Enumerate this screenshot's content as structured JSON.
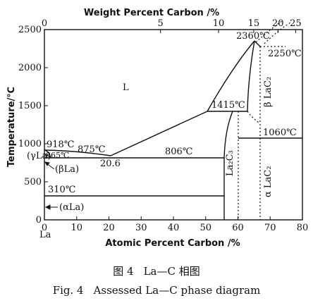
{
  "chart_data": {
    "type": "phase-diagram",
    "title_top_axis": "Weight Percent Carbon /%",
    "xlabel": "Atomic Percent Carbon /%",
    "ylabel": "Temperature/℃",
    "x_ticks": [
      "0",
      "10",
      "20",
      "30",
      "40",
      "50",
      "60",
      "70",
      "80"
    ],
    "top_ticks": [
      "0",
      "5",
      "10",
      "15",
      "20",
      "25"
    ],
    "y_ticks": [
      "0",
      "500",
      "1000",
      "1500",
      "2000",
      "2500"
    ],
    "xlim": [
      0,
      80
    ],
    "ylim": [
      0,
      2500
    ],
    "component_left": "La",
    "phase_labels": [
      "L",
      "(γLa)",
      "(βLa)",
      "(αLa)",
      "La₂C₃",
      "β LaC₂",
      "α LaC₂",
      "865℃"
    ],
    "temperature_labels": [
      "2360℃",
      "2250℃",
      "1415℃",
      "1060℃",
      "918℃",
      "875℃",
      "806℃",
      "310℃",
      "20.6"
    ],
    "lines": [
      {
        "name": "liquidus-left",
        "points": [
          [
            0,
            918
          ],
          [
            20.6,
            806
          ],
          [
            50,
            1415
          ],
          [
            56,
            1440
          ]
        ]
      },
      {
        "name": "liquidus-lac2-left",
        "points": [
          [
            50,
            1415
          ],
          [
            55,
            1800
          ],
          [
            60,
            2100
          ],
          [
            65,
            2360
          ]
        ]
      },
      {
        "name": "lac2-right-boundary",
        "points": [
          [
            65,
            2360
          ],
          [
            66.7,
            2250
          ]
        ]
      },
      {
        "name": "eutectic-806",
        "points": [
          [
            0,
            806
          ],
          [
            55.5,
            806
          ]
        ]
      },
      {
        "name": "peritectic-1415",
        "points": [
          [
            50,
            1415
          ],
          [
            60,
            1415
          ]
        ]
      },
      {
        "name": "transition-1060",
        "points": [
          [
            60,
            1060
          ],
          [
            80,
            1060
          ]
        ]
      },
      {
        "name": "transition-310",
        "points": [
          [
            0,
            310
          ],
          [
            55.5,
            310
          ]
        ]
      },
      {
        "name": "la2c3-boundary-left",
        "points": [
          [
            60,
            1415
          ],
          [
            57,
            1200
          ],
          [
            55.5,
            806
          ],
          [
            55.5,
            0
          ]
        ]
      }
    ]
  },
  "caption": {
    "cn_fig": "图 4",
    "cn_title": "La—C 相图",
    "en_fig": "Fig. 4",
    "en_title": "Assessed La—C phase diagram"
  }
}
